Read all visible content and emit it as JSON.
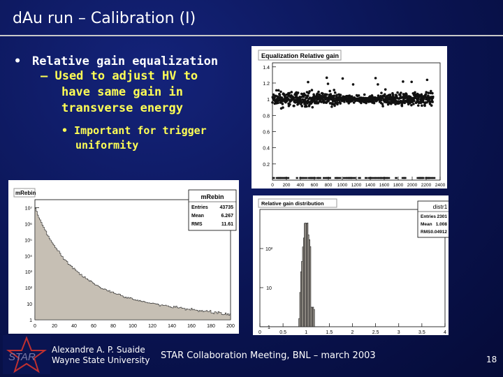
{
  "slide": {
    "title": "dAu run – Calibration (I)",
    "bullet1": "Relative gain equalization",
    "bullet2_line1": "– Used to adjust HV to",
    "bullet2_line2": "have same gain in",
    "bullet2_line3": "transverse energy",
    "bullet3_line1": "• Important for trigger",
    "bullet3_line2": "uniformity",
    "footer_author": "Alexandre A. P. Suaide",
    "footer_affiliation": "Wayne State University",
    "footer_meeting": "STAR Collaboration Meeting, BNL – march 2003",
    "page_number": "18",
    "logo_text": "STAR"
  },
  "chart_data": [
    {
      "type": "scatter",
      "title": "Equalization Relative gain",
      "x_ticks": [
        "0",
        "200",
        "400",
        "600",
        "800",
        "1000",
        "1200",
        "1400",
        "1600",
        "1800",
        "2000",
        "2200",
        "2400"
      ],
      "y_ticks": [
        "0.2",
        "0.4",
        "0.6",
        "0.8",
        "1",
        "1.2",
        "1.4"
      ],
      "xlim": [
        0,
        2400
      ],
      "ylim": [
        0,
        1.45
      ],
      "band_center": 1.0,
      "band_spread": 0.08
    },
    {
      "type": "bar",
      "title": "mRebin",
      "tab_label": "mRebin",
      "log_y": true,
      "stats": {
        "name": "mRebin",
        "rows": [
          [
            "Entries",
            "43735"
          ],
          [
            "Mean",
            "6.267"
          ],
          [
            "RMS",
            "11.61"
          ]
        ]
      },
      "x_ticks": [
        "0",
        "20",
        "40",
        "60",
        "80",
        "100",
        "120",
        "140",
        "160",
        "180",
        "200"
      ],
      "y_ticks": [
        "1",
        "10",
        "10²",
        "10³",
        "10⁴",
        "10⁵",
        "10⁶",
        "10⁷"
      ],
      "xlim": [
        0,
        200
      ],
      "ylim_log10": [
        0,
        7.5
      ]
    },
    {
      "type": "bar",
      "title": "Relative gain distribution",
      "log_y": true,
      "stats": {
        "name": "distr1",
        "rows": [
          [
            "Entries",
            "2301"
          ],
          [
            "Mean",
            "1.008"
          ],
          [
            "RMS",
            "0.04912"
          ]
        ]
      },
      "x_ticks": [
        "0",
        "0.5",
        "1",
        "1.5",
        "2",
        "2.5",
        "3",
        "3.5",
        "4"
      ],
      "y_ticks": [
        "1",
        "10",
        "10²"
      ],
      "xlim": [
        0,
        4
      ],
      "ylim_log10": [
        0,
        3.0
      ]
    }
  ]
}
